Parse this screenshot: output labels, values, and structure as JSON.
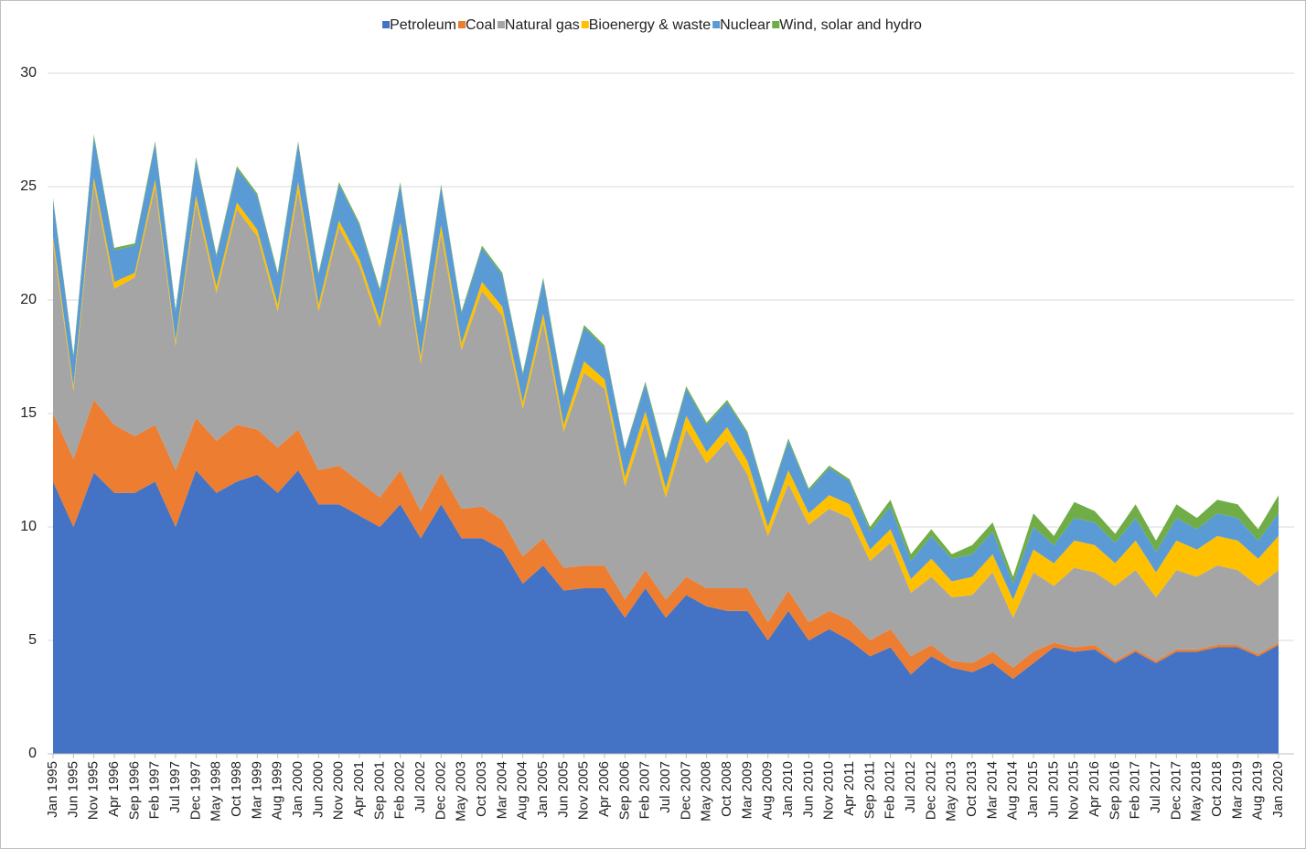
{
  "chart_data": {
    "type": "stacked_area",
    "categories": [
      "Jan 1995",
      "Jun 1995",
      "Nov 1995",
      "Apr 1996",
      "Sep 1996",
      "Feb 1997",
      "Jul 1997",
      "Dec 1997",
      "May 1998",
      "Oct 1998",
      "Mar 1999",
      "Aug 1999",
      "Jan 2000",
      "Jun 2000",
      "Nov 2000",
      "Apr 2001",
      "Sep 2001",
      "Feb 2002",
      "Jul 2002",
      "Dec 2002",
      "May 2003",
      "Oct 2003",
      "Mar 2004",
      "Aug 2004",
      "Jan 2005",
      "Jun 2005",
      "Nov 2005",
      "Apr 2006",
      "Sep 2006",
      "Feb 2007",
      "Jul 2007",
      "Dec 2007",
      "May 2008",
      "Oct 2008",
      "Mar 2009",
      "Aug 2009",
      "Jan 2010",
      "Jun 2010",
      "Nov 2010",
      "Apr 2011",
      "Sep 2011",
      "Feb 2012",
      "Jul 2012",
      "Dec 2012",
      "May 2013",
      "Oct 2013",
      "Mar 2014",
      "Aug 2014",
      "Jan 2015",
      "Jun 2015",
      "Nov 2015",
      "Apr 2016",
      "Sep 2016",
      "Feb 2017",
      "Jul 2017",
      "Dec 2017",
      "May 2018",
      "Oct 2018",
      "Mar 2019",
      "Aug 2019",
      "Jan 2020"
    ],
    "series": [
      {
        "name": "Petroleum",
        "color": "#4472c4",
        "values": [
          12,
          10,
          12.4,
          11.5,
          11.5,
          12,
          10,
          12.5,
          11.5,
          12,
          12.3,
          11.5,
          12.5,
          11,
          11,
          10.5,
          10,
          11,
          9.5,
          11,
          9.5,
          9.5,
          9,
          7.5,
          8.3,
          7.2,
          7.3,
          7.3,
          6,
          7.3,
          6,
          7,
          6.5,
          6.3,
          6.3,
          5,
          6.3,
          5,
          5.5,
          5,
          4.3,
          4.7,
          3.5,
          4.3,
          3.8,
          3.6,
          4,
          3.3,
          4,
          4.7,
          4.5,
          4.6,
          4,
          4.5,
          4,
          4.5,
          4.5,
          4.7,
          4.7,
          4.3,
          4.8
        ]
      },
      {
        "name": "Coal",
        "color": "#ed7d31",
        "values": [
          3,
          3,
          3.2,
          3,
          2.5,
          2.5,
          2.5,
          2.3,
          2.3,
          2.5,
          2,
          2,
          1.8,
          1.5,
          1.7,
          1.5,
          1.3,
          1.5,
          1.2,
          1.4,
          1.3,
          1.4,
          1.3,
          1.2,
          1.2,
          1,
          1,
          1,
          0.8,
          0.8,
          0.8,
          0.8,
          0.8,
          1,
          1,
          0.8,
          0.9,
          0.8,
          0.8,
          0.9,
          0.7,
          0.8,
          0.8,
          0.5,
          0.3,
          0.4,
          0.5,
          0.5,
          0.5,
          0.2,
          0.2,
          0.2,
          0.1,
          0.1,
          0.1,
          0.1,
          0.1,
          0.1,
          0.1,
          0.1,
          0.1
        ]
      },
      {
        "name": "Natural gas",
        "color": "#a5a5a5",
        "values": [
          7.5,
          3,
          9.5,
          6,
          7,
          10.5,
          5.5,
          9.5,
          6.5,
          9.5,
          8.5,
          6,
          10.5,
          7,
          10.5,
          9.5,
          7.5,
          10.5,
          6.5,
          10.5,
          7,
          9.5,
          9,
          6.5,
          9.5,
          6,
          8.5,
          7.8,
          5,
          6.5,
          4.5,
          6.5,
          5.5,
          6.5,
          5,
          3.8,
          4.7,
          4.3,
          4.5,
          4.5,
          3.5,
          3.8,
          2.8,
          3,
          2.8,
          3,
          3.5,
          2.2,
          3.5,
          2.5,
          3.5,
          3.2,
          3.3,
          3.5,
          2.8,
          3.5,
          3.2,
          3.5,
          3.3,
          3,
          3.2
        ]
      },
      {
        "name": "Bioenergy & waste",
        "color": "#ffc000",
        "values": [
          0.3,
          0.2,
          0.3,
          0.3,
          0.2,
          0.3,
          0.2,
          0.3,
          0.3,
          0.3,
          0.3,
          0.3,
          0.4,
          0.3,
          0.3,
          0.3,
          0.3,
          0.4,
          0.3,
          0.4,
          0.3,
          0.4,
          0.4,
          0.3,
          0.4,
          0.3,
          0.5,
          0.4,
          0.4,
          0.5,
          0.4,
          0.6,
          0.5,
          0.6,
          0.6,
          0.4,
          0.6,
          0.5,
          0.6,
          0.6,
          0.5,
          0.6,
          0.6,
          0.8,
          0.7,
          0.8,
          0.8,
          0.8,
          1,
          1,
          1.2,
          1.2,
          1,
          1.3,
          1.1,
          1.3,
          1.2,
          1.3,
          1.3,
          1.2,
          1.5
        ]
      },
      {
        "name": "Nuclear",
        "color": "#5b9bd5",
        "values": [
          1.6,
          1.3,
          1.8,
          1.4,
          1.2,
          1.6,
          1.3,
          1.6,
          1.3,
          1.5,
          1.5,
          1.3,
          1.7,
          1.3,
          1.6,
          1.5,
          1.3,
          1.7,
          1.4,
          1.7,
          1.3,
          1.5,
          1.4,
          1.2,
          1.5,
          1.2,
          1.5,
          1.4,
          1.2,
          1.2,
          1.2,
          1.2,
          1.2,
          1.1,
          1.2,
          1,
          1.3,
          1,
          1.2,
          1,
          0.8,
          1,
          0.8,
          1,
          1,
          1,
          1,
          0.7,
          1,
          0.8,
          1,
          1,
          0.9,
          1,
          0.9,
          1,
          0.9,
          1,
          1,
          0.8,
          1
        ]
      },
      {
        "name": "Wind, solar and hydro",
        "color": "#70ad47",
        "values": [
          0.1,
          0.1,
          0.1,
          0.1,
          0.1,
          0.1,
          0.1,
          0.1,
          0.1,
          0.1,
          0.1,
          0.1,
          0.1,
          0.1,
          0.1,
          0.1,
          0.1,
          0.1,
          0.1,
          0.1,
          0.1,
          0.1,
          0.1,
          0.1,
          0.1,
          0.1,
          0.1,
          0.1,
          0.05,
          0.1,
          0.1,
          0.1,
          0.1,
          0.1,
          0.1,
          0.1,
          0.1,
          0.1,
          0.1,
          0.1,
          0.2,
          0.3,
          0.3,
          0.3,
          0.2,
          0.4,
          0.4,
          0.3,
          0.6,
          0.4,
          0.7,
          0.5,
          0.4,
          0.6,
          0.5,
          0.6,
          0.5,
          0.6,
          0.6,
          0.5,
          0.8
        ]
      }
    ],
    "ylim": [
      0,
      30
    ],
    "yticks": [
      0,
      5,
      10,
      15,
      20,
      25,
      30
    ],
    "grid": true,
    "legend": "top"
  }
}
